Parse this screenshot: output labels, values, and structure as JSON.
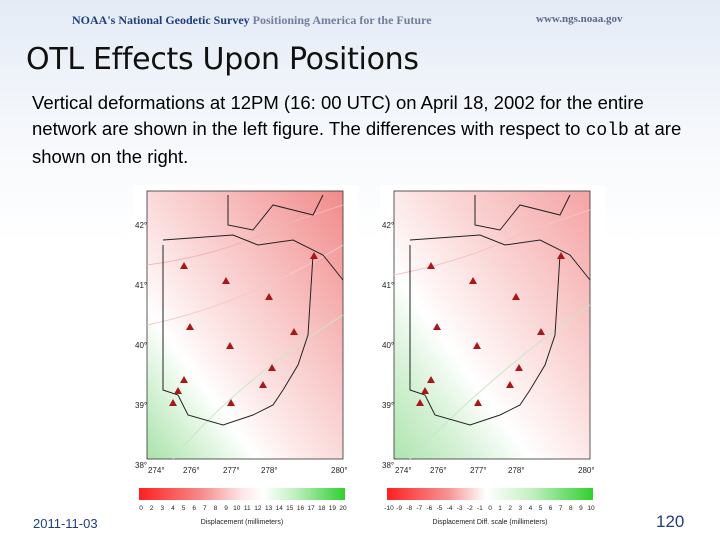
{
  "header": {
    "agency": "NOAA's",
    "survey": "National Geodetic Survey",
    "tagline": "Positioning America for the Future",
    "url": "www.ngs.noaa.gov"
  },
  "slide": {
    "title": "OTL Effects Upon Positions",
    "text_part1": "Vertical deformations at 12PM (16: 00 UTC) on April 18, 2002 for the entire network are shown in the left figure. The differences with respect to ",
    "text_code": "colb",
    "text_part2": " at are shown on the right."
  },
  "maps": [
    {
      "lat_labels": [
        "42°",
        "41°",
        "40°",
        "39°",
        "38°"
      ],
      "lon_labels": [
        "274°",
        "276°",
        "277°",
        "278°",
        "280°"
      ],
      "scale_ticks": [
        "0",
        "2",
        "3",
        "4",
        "5",
        "6",
        "7",
        "8",
        "9",
        "10",
        "11",
        "12",
        "13",
        "14",
        "15",
        "16",
        "17",
        "18",
        "19",
        "20"
      ],
      "scale_label": "Displacement (millimeters)"
    },
    {
      "lat_labels": [
        "42°",
        "41°",
        "40°",
        "39°",
        "38°"
      ],
      "lon_labels": [
        "274°",
        "276°",
        "277°",
        "278°",
        "280°"
      ],
      "scale_ticks": [
        "-10",
        "-9",
        "-8",
        "-7",
        "-6",
        "-5",
        "-4",
        "-3",
        "-2",
        "-1",
        "0",
        "1",
        "2",
        "3",
        "4",
        "5",
        "6",
        "7",
        "8",
        "9",
        "10"
      ],
      "scale_label": "Displacement Diff. scale (millimeters)"
    }
  ],
  "footer": {
    "date": "2011-11-03",
    "page": "120"
  }
}
